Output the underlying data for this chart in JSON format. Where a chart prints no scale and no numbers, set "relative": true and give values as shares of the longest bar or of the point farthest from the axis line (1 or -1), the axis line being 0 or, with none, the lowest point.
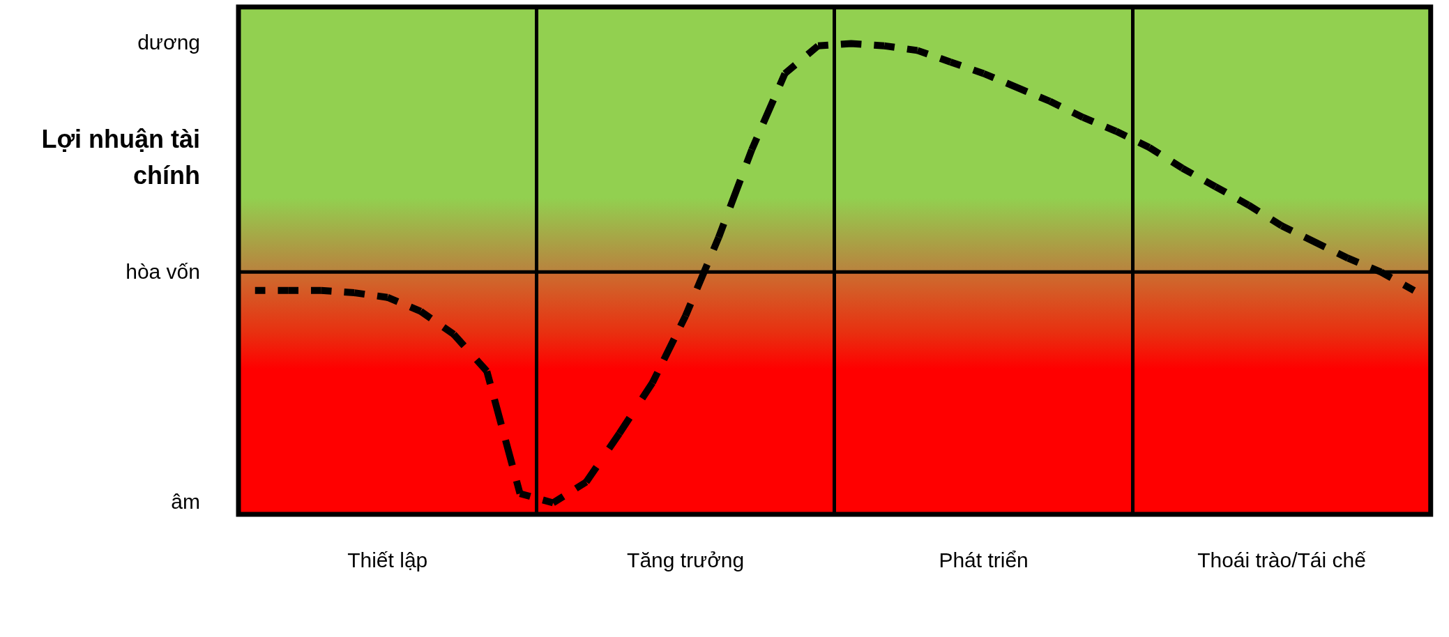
{
  "chart_data": {
    "type": "line",
    "relative": true,
    "ylabel": "Lợi nhuận tài chính",
    "line_style": "dashed",
    "marker": "none",
    "legend": false,
    "categories": [
      null,
      null,
      null,
      null,
      "Thiết lập",
      null,
      null,
      null,
      null,
      null,
      null,
      null,
      null,
      "Tăng trưởng",
      null,
      null,
      null,
      null,
      null,
      null,
      null,
      null,
      "Phát triển",
      null,
      null,
      null,
      null,
      null,
      null,
      null,
      null,
      "Thoái trào/Tái chế",
      null,
      null,
      null,
      null
    ],
    "annotations": [
      "dương",
      "hòa vốn",
      "âm"
    ],
    "ref_lines": [
      {
        "axis": "y",
        "value": 0,
        "color": "#000000"
      }
    ],
    "series": [
      {
        "color": "#000000",
        "values": [
          -0.08,
          -0.08,
          -0.08,
          -0.09,
          -0.11,
          -0.17,
          -0.27,
          -0.43,
          -0.96,
          -1.0,
          -0.91,
          -0.7,
          -0.48,
          -0.19,
          0.15,
          0.53,
          0.86,
          0.98,
          0.99,
          0.98,
          0.96,
          0.91,
          0.86,
          0.8,
          0.74,
          0.67,
          0.61,
          0.54,
          0.45,
          0.37,
          0.29,
          0.2,
          0.13,
          0.06,
          0.0,
          -0.08
        ]
      }
    ]
  }
}
